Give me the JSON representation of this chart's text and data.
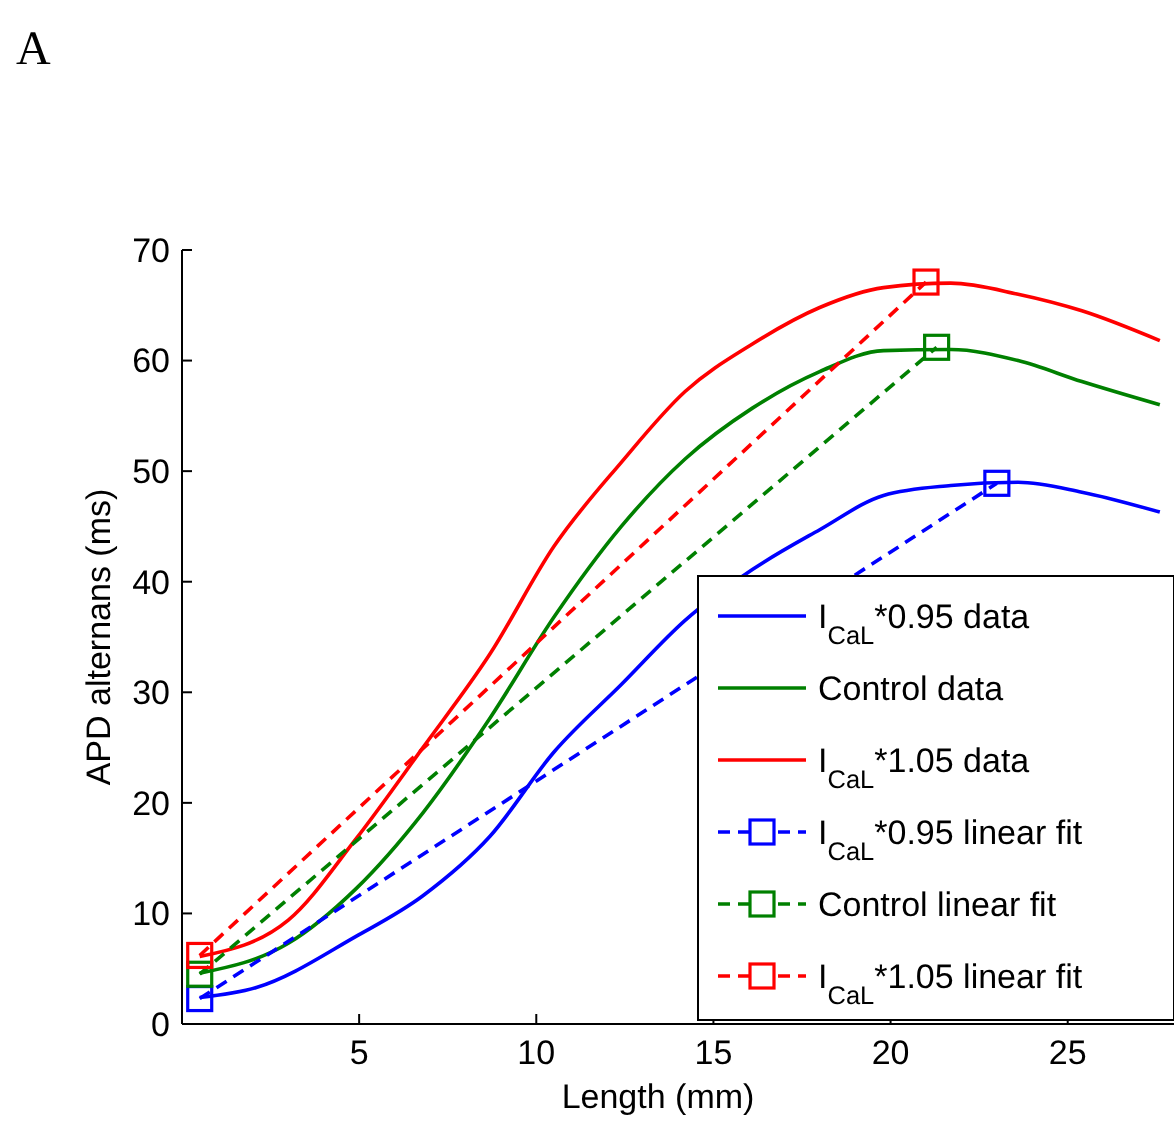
{
  "chart_data": {
    "type": "line",
    "title": "A",
    "xlabel": "Length (mm)",
    "ylabel": "APD alternans (ms)",
    "xlim": [
      0,
      28
    ],
    "xticks": [
      5,
      10,
      15,
      20,
      25
    ],
    "ylim": [
      0,
      70
    ],
    "yticks": [
      0,
      10,
      20,
      30,
      40,
      50,
      60,
      70
    ],
    "grid": false,
    "legend": "bottom right",
    "series": [
      {
        "name": "I$_{CaL}$*0.95 data",
        "color": "#0000ff",
        "line_style": "solid",
        "marker": "none",
        "x": [
          0.5,
          2.1,
          4.9,
          6.8,
          8.7,
          10.5,
          12.4,
          14.2,
          16.1,
          18,
          19.8,
          21.7,
          23.6,
          25.4,
          27.6
        ],
        "values": [
          2.4,
          3.3,
          7.9,
          11.6,
          17,
          24.6,
          30.7,
          36.5,
          41.1,
          44.7,
          47.8,
          48.7,
          49,
          48.1,
          46.3
        ]
      },
      {
        "name": "Control data",
        "color": "#008000",
        "line_style": "solid",
        "marker": "none",
        "x": [
          0.5,
          3,
          4.9,
          6.8,
          8.7,
          10.5,
          12.4,
          14.2,
          16.1,
          18,
          19.8,
          21.7,
          23.6,
          25.4,
          27.6
        ],
        "values": [
          4.6,
          7.3,
          12.2,
          19.1,
          27.7,
          36.8,
          45,
          51.1,
          55.7,
          59,
          60.9,
          61,
          60,
          58.1,
          56
        ]
      },
      {
        "name": "I$_{CaL}$*1.05 data",
        "color": "#ff0000",
        "line_style": "solid",
        "marker": "none",
        "x": [
          0.5,
          3,
          4.9,
          6.8,
          8.7,
          10.5,
          12.4,
          14.2,
          16.1,
          18,
          19.8,
          21.7,
          23.6,
          25.4,
          27.6
        ],
        "values": [
          6.1,
          9.4,
          16.7,
          25,
          33.5,
          43.2,
          50.8,
          57.2,
          61.5,
          64.8,
          66.6,
          67,
          66,
          64.5,
          61.8
        ]
      },
      {
        "name": "I$_{CaL}$*0.95 linear fit",
        "color": "#0000ff",
        "line_style": "dashed",
        "marker": "square",
        "x": [
          0.5,
          23
        ],
        "values": [
          2.3,
          48.9
        ]
      },
      {
        "name": "Control linear fit",
        "color": "#008000",
        "line_style": "dashed",
        "marker": "square",
        "x": [
          0.5,
          21.3
        ],
        "values": [
          4.5,
          61.2
        ]
      },
      {
        "name": "I$_{CaL}$*1.05 linear fit",
        "color": "#ff0000",
        "line_style": "dashed",
        "marker": "square",
        "x": [
          0.5,
          21
        ],
        "values": [
          6.2,
          67.1
        ]
      }
    ]
  }
}
